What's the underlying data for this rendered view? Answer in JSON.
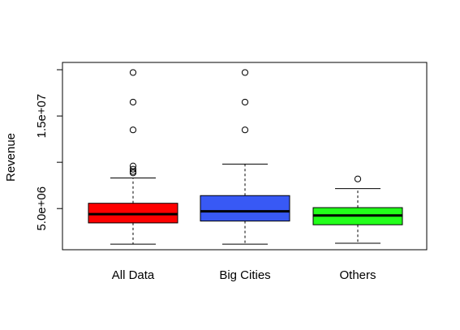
{
  "chart_data": {
    "type": "boxplot",
    "title": "",
    "xlabel": "",
    "ylabel": "Revenue",
    "ylim": [
      0,
      20000000
    ],
    "y_ticks": [
      {
        "value": 5000000,
        "label": "5.0e+06"
      },
      {
        "value": 15000000,
        "label": "1.5e+07"
      }
    ],
    "y_minor_ticks": [
      0,
      10000000,
      20000000
    ],
    "categories": [
      "All Data",
      "Big Cities",
      "Others"
    ],
    "boxes": [
      {
        "name": "All Data",
        "color": "#ff0000",
        "whisker_low": 1150000,
        "q1": 3450000,
        "median": 4400000,
        "q3": 5570000,
        "whisker_high": 8300000,
        "outliers": [
          19700000,
          16500000,
          13500000,
          9600000,
          9250000,
          9000000,
          8850000
        ]
      },
      {
        "name": "Big Cities",
        "color": "#3859f5",
        "whisker_low": 1150000,
        "q1": 3650000,
        "median": 4700000,
        "q3": 6400000,
        "whisker_high": 9800000,
        "outliers": [
          19700000,
          16500000,
          13500000
        ]
      },
      {
        "name": "Others",
        "color": "#22ff1a",
        "whisker_low": 1250000,
        "q1": 3250000,
        "median": 4250000,
        "q3": 5100000,
        "whisker_high": 7150000,
        "outliers": [
          8200000
        ]
      }
    ]
  }
}
